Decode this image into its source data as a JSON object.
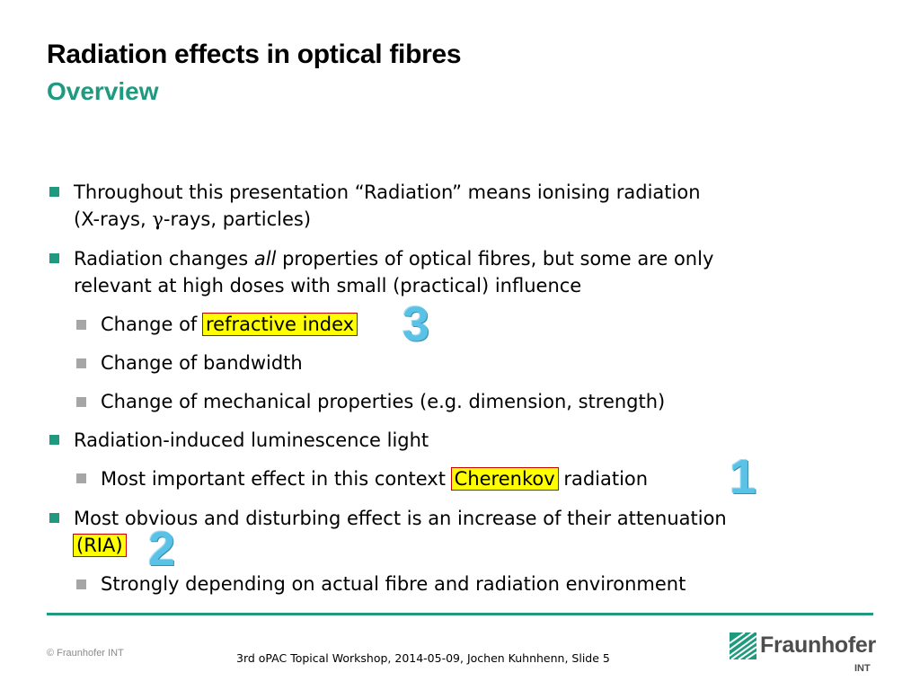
{
  "header": {
    "title": "Radiation effects in optical fibres",
    "subtitle": "Overview"
  },
  "bullets": {
    "b1_line1": "Throughout this presentation “Radiation” means ionising radiation",
    "b1_line2_a": "(X-rays, ",
    "b1_line2_gamma": "γ",
    "b1_line2_b": "-rays, particles)",
    "b2_line1_a": "Radiation changes ",
    "b2_line1_em": "all",
    "b2_line1_b": " properties of optical fibres, but some are only",
    "b2_line2": "relevant at high doses with small (practical) influence",
    "b2_sub1_a": "Change of ",
    "b2_sub1_hl": "refractive index",
    "b2_sub2": "Change of bandwidth",
    "b2_sub3": "Change of mechanical properties (e.g. dimension, strength)",
    "b3_line1": "Radiation-induced luminescence light",
    "b3_sub1_a": "Most important effect in this context ",
    "b3_sub1_hl": "Cherenkov",
    "b3_sub1_b": " radiation",
    "b4_line1": "Most obvious and disturbing effect is an increase of their attenuation",
    "b4_line2_hl": "(RIA)",
    "b4_sub1": "Strongly depending on actual fibre and radiation environment"
  },
  "annotations": {
    "n3": "3",
    "n1": "1",
    "n2": "2"
  },
  "footer": {
    "copyright": "© Fraunhofer INT",
    "info": "3rd oPAC Topical Workshop, 2014-05-09, Jochen Kuhnhenn, Slide 5",
    "logo_name": "Fraunhofer",
    "logo_sub": "INT"
  },
  "colors": {
    "accent": "#1f9a7e",
    "highlight": "#ffff00",
    "annotation": "#5bc2e7"
  },
  "icons": {
    "logo": "fraunhofer-logo-icon"
  }
}
